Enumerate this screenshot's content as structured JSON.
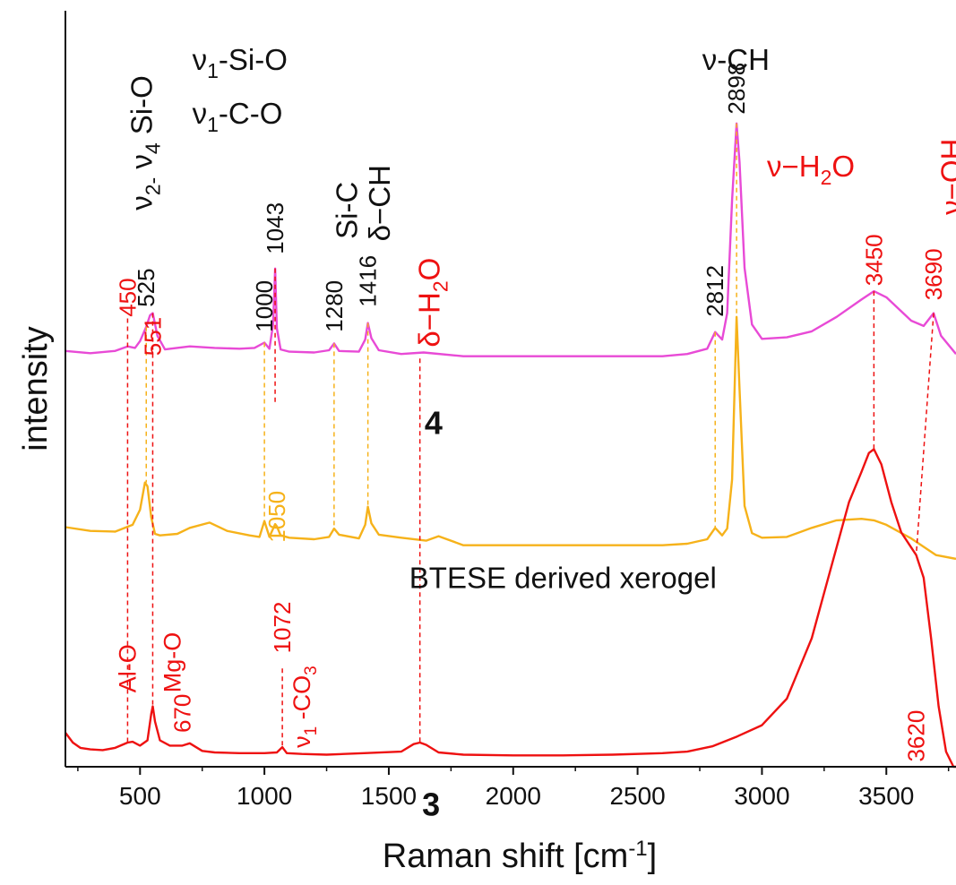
{
  "chart_data": {
    "type": "line",
    "xlabel": "Raman shift [cm-1]",
    "xlabel_main": "Raman shift [cm",
    "xlabel_sup": "-1",
    "xlabel_close": "]",
    "ylabel": "intensity",
    "xlim": [
      200,
      3780
    ],
    "ylim": [
      0,
      100
    ],
    "xticks": [
      500,
      1000,
      1500,
      2000,
      2500,
      3000,
      3500
    ],
    "y_tick_labels": "none",
    "grid": false,
    "legend": "none",
    "colors": {
      "sample_4": "#e84ad6",
      "btese": "#f6b21a",
      "sample_3": "#ee1111",
      "black_label": "#111111",
      "red_label": "#ee1111",
      "orange_label": "#f6b21a"
    },
    "series": [
      {
        "name": "4",
        "color": "#e84ad6",
        "x": [
          200,
          300,
          400,
          450,
          480,
          500,
          525,
          540,
          551,
          570,
          600,
          700,
          800,
          900,
          960,
          1000,
          1020,
          1035,
          1043,
          1050,
          1065,
          1100,
          1200,
          1260,
          1280,
          1300,
          1380,
          1405,
          1416,
          1430,
          1460,
          1550,
          1640,
          1800,
          2000,
          2200,
          2400,
          2600,
          2700,
          2780,
          2812,
          2840,
          2860,
          2880,
          2898,
          2910,
          2930,
          2960,
          3000,
          3100,
          3200,
          3300,
          3400,
          3450,
          3500,
          3600,
          3650,
          3690,
          3720,
          3780
        ],
        "y": [
          55.0,
          54.7,
          55.0,
          55.6,
          55.4,
          56.3,
          58.2,
          59.7,
          60.0,
          57.0,
          55.2,
          55.6,
          55.4,
          55.3,
          55.4,
          56.1,
          55.3,
          58.5,
          65.9,
          58.0,
          55.2,
          54.9,
          54.8,
          55.1,
          56.0,
          55.0,
          54.9,
          56.5,
          58.7,
          56.7,
          55.1,
          54.6,
          54.8,
          54.3,
          54.3,
          54.3,
          54.3,
          54.3,
          54.6,
          55.3,
          57.5,
          56.5,
          60.0,
          75.0,
          85.1,
          80.0,
          66.0,
          58.5,
          56.6,
          56.8,
          57.6,
          59.5,
          61.8,
          62.9,
          62.1,
          59.0,
          58.3,
          60.0,
          57.0,
          54.6
        ]
      },
      {
        "name": "BTESE derived xerogel",
        "color": "#f6b21a",
        "x": [
          200,
          300,
          400,
          470,
          500,
          520,
          530,
          545,
          560,
          580,
          650,
          700,
          780,
          850,
          940,
          980,
          1000,
          1020,
          1043,
          1050,
          1065,
          1100,
          1200,
          1260,
          1280,
          1300,
          1380,
          1405,
          1416,
          1430,
          1460,
          1550,
          1650,
          1700,
          1800,
          2000,
          2200,
          2400,
          2600,
          2700,
          2780,
          2812,
          2840,
          2860,
          2880,
          2898,
          2910,
          2930,
          2960,
          3000,
          3100,
          3200,
          3300,
          3400,
          3450,
          3500,
          3600,
          3700,
          3780
        ],
        "y": [
          31.7,
          31.2,
          31.1,
          32.0,
          34.0,
          37.6,
          37.1,
          33.0,
          30.8,
          30.6,
          30.8,
          31.6,
          32.3,
          31.2,
          30.6,
          30.4,
          32.5,
          30.4,
          32.1,
          31.8,
          30.6,
          30.3,
          30.1,
          30.4,
          31.5,
          30.7,
          30.2,
          32.0,
          34.4,
          32.2,
          30.7,
          30.3,
          29.9,
          30.5,
          29.3,
          29.3,
          29.3,
          29.3,
          29.3,
          29.5,
          30.1,
          31.6,
          30.6,
          31.5,
          38.0,
          59.5,
          50.0,
          34.5,
          30.9,
          30.3,
          30.4,
          31.6,
          32.6,
          32.8,
          32.6,
          32.0,
          30.2,
          28.0,
          27.5
        ]
      },
      {
        "name": "3",
        "color": "#ee1111",
        "x": [
          200,
          230,
          260,
          300,
          350,
          400,
          450,
          470,
          500,
          530,
          545,
          551,
          560,
          580,
          620,
          670,
          700,
          750,
          800,
          900,
          1000,
          1050,
          1072,
          1090,
          1150,
          1250,
          1400,
          1550,
          1600,
          1625,
          1650,
          1700,
          1800,
          2000,
          2200,
          2400,
          2600,
          2700,
          2800,
          2900,
          3000,
          3100,
          3200,
          3250,
          3300,
          3350,
          3400,
          3430,
          3450,
          3480,
          3520,
          3560,
          3600,
          3620,
          3650,
          3680,
          3710,
          3740,
          3770,
          3780
        ],
        "y": [
          4.5,
          3.2,
          2.5,
          2.3,
          2.2,
          2.5,
          3.2,
          3.3,
          2.8,
          3.5,
          7.0,
          8.0,
          6.0,
          3.5,
          2.8,
          2.8,
          3.1,
          2.1,
          1.9,
          1.8,
          1.8,
          1.9,
          2.6,
          1.8,
          1.7,
          1.6,
          1.8,
          2.0,
          3.0,
          3.2,
          2.9,
          1.9,
          1.6,
          1.5,
          1.5,
          1.6,
          1.8,
          2.0,
          2.7,
          4.0,
          5.5,
          9.0,
          17.0,
          23.0,
          29.0,
          35.0,
          39.0,
          41.5,
          42.0,
          40.0,
          35.0,
          31.0,
          29.0,
          28.0,
          25.0,
          17.0,
          8.0,
          2.0,
          0.0,
          0.0
        ]
      }
    ],
    "series_labels": [
      {
        "text": "4",
        "x": 1680,
        "y": 45.5
      },
      {
        "text": "BTESE derived xerogel",
        "x": 2200,
        "y": 25.0
      },
      {
        "text": "3",
        "x": 1670,
        "y": -5.0
      }
    ],
    "peak_markers": [
      {
        "x": 450,
        "color": "#ee1111",
        "y_from": 2.9,
        "y_to": 59.3,
        "label": "450",
        "label_y": 59.5,
        "label_anchor": "start"
      },
      {
        "x": 525,
        "color": "#f6b21a",
        "y_from": 37.6,
        "y_to": 58.2,
        "label": "525",
        "label_y": 60.8,
        "label_anchor": "start",
        "label_color": "#111111"
      },
      {
        "x": 551,
        "color": "#ee1111",
        "y_from": 8.0,
        "y_to": 60.0,
        "label": "551",
        "label_y": 59.5,
        "label_anchor": "end"
      },
      {
        "x": 1000,
        "color": "#f6b21a",
        "y_from": 32.5,
        "y_to": 56.1,
        "label": "1000",
        "label_y": 57.5,
        "label_anchor": "start",
        "label_color": "#111111"
      },
      {
        "x": 1043,
        "color": "#ee1111",
        "y_from": 48.0,
        "y_to": 65.9,
        "label": "1043",
        "label_y": 67.8,
        "label_anchor": "start",
        "label_color": "#111111"
      },
      {
        "x": 1280,
        "color": "#f6b21a",
        "y_from": 31.5,
        "y_to": 56.0,
        "label": "1280",
        "label_y": 57.5,
        "label_anchor": "start",
        "label_color": "#111111"
      },
      {
        "x": 1416,
        "color": "#f6b21a",
        "y_from": 34.4,
        "y_to": 58.7,
        "label": "1416",
        "label_y": 60.8,
        "label_anchor": "start",
        "label_color": "#111111"
      },
      {
        "x": 1625,
        "color": "#ee1111",
        "y_from": 3.2,
        "y_to": 54.0,
        "label": "",
        "label_y": 0,
        "label_anchor": "start"
      },
      {
        "x": 2812,
        "color": "#f6b21a",
        "y_from": 31.6,
        "y_to": 57.5,
        "label": "2812",
        "label_y": 59.5,
        "label_anchor": "start",
        "label_color": "#111111"
      },
      {
        "x": 2898,
        "color": "#f6b21a",
        "y_from": 59.5,
        "y_to": 85.1,
        "label": "2898",
        "label_y": 86.3,
        "label_anchor": "start",
        "label_color": "#111111"
      },
      {
        "x": 3450,
        "color": "#ee1111",
        "y_from": 42.0,
        "y_to": 62.9,
        "label": "3450",
        "label_y": 63.6,
        "label_anchor": "start"
      },
      {
        "x": 3690,
        "color": "#ee1111",
        "y_from": 28.0,
        "y_to": 60.0,
        "x_to": 3620,
        "label": "3690",
        "label_y": 61.7,
        "label_anchor": "start"
      },
      {
        "x": 1050,
        "color": "#f6b21a",
        "y_from": 0,
        "y_to": 0,
        "label": "1050",
        "label_y": 36.5,
        "label_anchor": "end",
        "label_color": "#f6b21a"
      },
      {
        "x": 1072,
        "color": "#ee1111",
        "y_from": 2.6,
        "y_to": 13.0,
        "label": "1072",
        "label_y": 15.0,
        "label_anchor": "start"
      },
      {
        "x": 670,
        "color": "#ee1111",
        "y_from": 0,
        "y_to": 0,
        "label": "670",
        "label_y": 4.5,
        "label_anchor": "start"
      },
      {
        "x": 3620,
        "color": "#ee1111",
        "y_from": 0,
        "y_to": 0,
        "label": "3620",
        "label_y": 7.5,
        "label_anchor": "end"
      }
    ],
    "annotations": [
      {
        "id": "nu2-nu4-si-o",
        "parts": [
          [
            "ν",
            ""
          ],
          [
            "2-",
            "sub"
          ],
          [
            " ν",
            ""
          ],
          [
            "4",
            "sub"
          ],
          [
            " Si-O",
            ""
          ]
        ],
        "x": 505,
        "y": 73.6,
        "rotate": -90,
        "color": "#111111",
        "size": 33
      },
      {
        "id": "nu1-si-o",
        "parts": [
          [
            "ν",
            ""
          ],
          [
            "1",
            "sub"
          ],
          [
            "-Si-O",
            ""
          ]
        ],
        "x": 710,
        "y": 93.6,
        "rotate": 0,
        "color": "#111111",
        "size": 33
      },
      {
        "id": "nu1-c-o",
        "parts": [
          [
            "ν",
            ""
          ],
          [
            "1",
            "sub"
          ],
          [
            "-C-O",
            ""
          ]
        ],
        "x": 710,
        "y": 86.5,
        "rotate": 0,
        "color": "#111111",
        "size": 33
      },
      {
        "id": "si-c",
        "parts": [
          [
            "Si-C",
            ""
          ]
        ],
        "x": 1330,
        "y": 69.8,
        "rotate": -90,
        "color": "#111111",
        "size": 33
      },
      {
        "id": "delta-ch",
        "parts": [
          [
            "δ−CH",
            ""
          ]
        ],
        "x": 1460,
        "y": 69.5,
        "rotate": -90,
        "color": "#111111",
        "size": 33
      },
      {
        "id": "nu-ch",
        "parts": [
          [
            "ν-CH",
            ""
          ]
        ],
        "x": 2760,
        "y": 93.6,
        "rotate": 0,
        "color": "#111111",
        "size": 33
      },
      {
        "id": "delta-h2o",
        "parts": [
          [
            "δ−H",
            ""
          ],
          [
            "2",
            "sub"
          ],
          [
            "O",
            ""
          ]
        ],
        "x": 1660,
        "y": 55.5,
        "rotate": -90,
        "color": "#ee1111",
        "size": 33
      },
      {
        "id": "nu-h2o",
        "parts": [
          [
            "ν−H",
            ""
          ],
          [
            "2",
            "sub"
          ],
          [
            "O",
            ""
          ]
        ],
        "x": 3020,
        "y": 79.5,
        "rotate": 0,
        "color": "#ee1111",
        "size": 33
      },
      {
        "id": "nu-oh",
        "parts": [
          [
            "ν−OH",
            ""
          ]
        ],
        "x": 3760,
        "y": 73.0,
        "rotate": -90,
        "color": "#ee1111",
        "size": 33
      },
      {
        "id": "al-o",
        "parts": [
          [
            "Al-O",
            ""
          ]
        ],
        "x": 450,
        "y": 9.8,
        "rotate": -90,
        "color": "#ee1111",
        "size": 27
      },
      {
        "id": "mg-o",
        "parts": [
          [
            "Mg-O",
            ""
          ]
        ],
        "x": 630,
        "y": 9.8,
        "rotate": -90,
        "color": "#ee1111",
        "size": 27
      },
      {
        "id": "nu1-co3",
        "parts": [
          [
            "ν",
            ""
          ],
          [
            "1",
            "sub"
          ],
          [
            " -CO",
            ""
          ],
          [
            "3",
            "sub"
          ]
        ],
        "x": 1150,
        "y": 2.5,
        "rotate": -90,
        "color": "#ee1111",
        "size": 27
      }
    ]
  }
}
